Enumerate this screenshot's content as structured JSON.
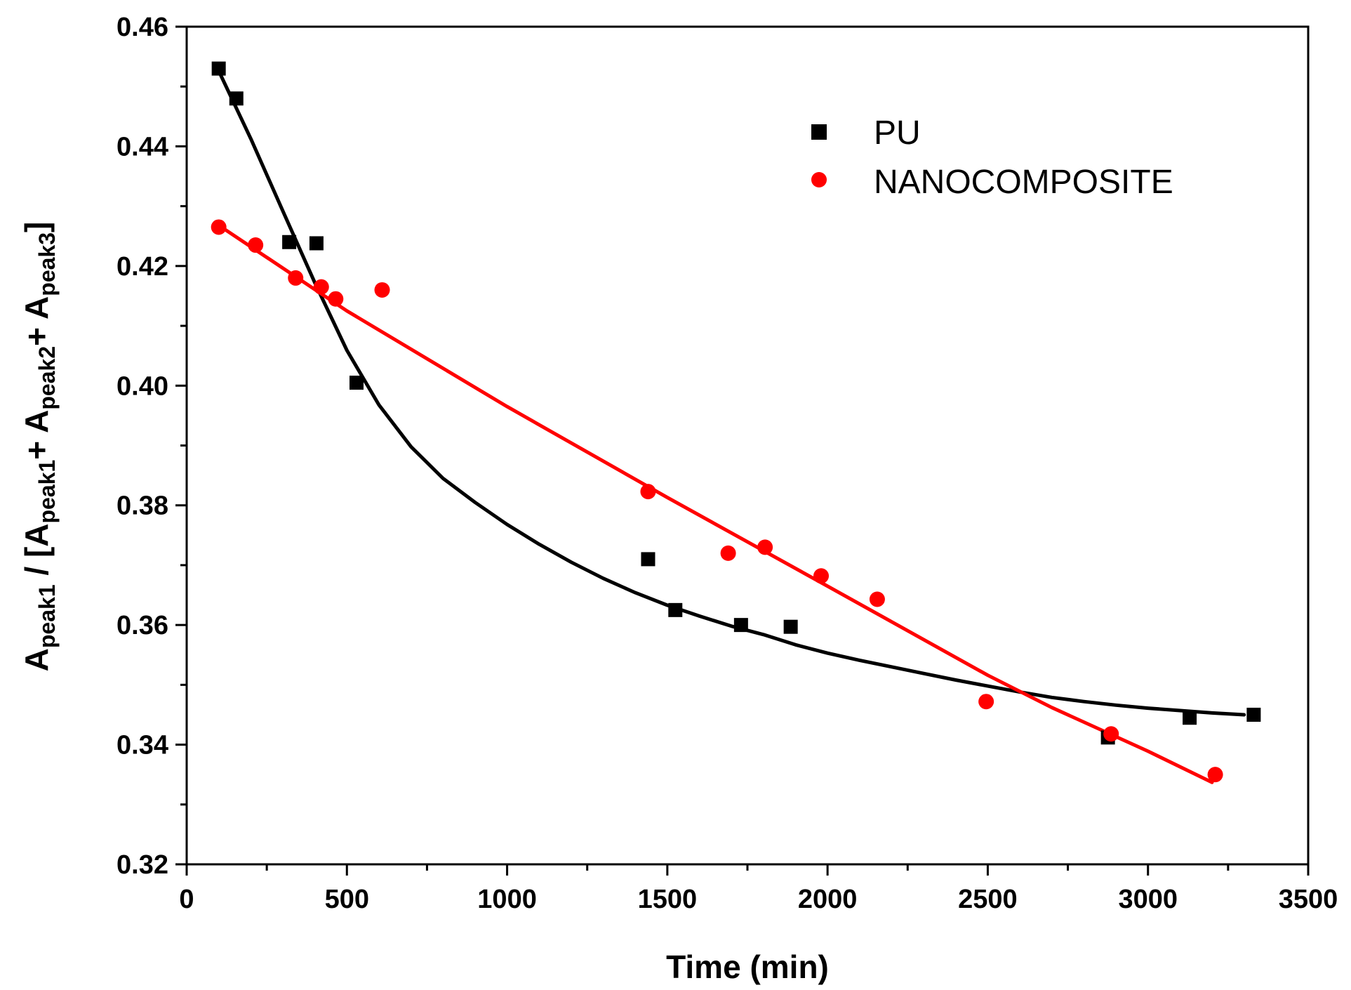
{
  "chart_data": {
    "type": "scatter",
    "title": "",
    "xlabel": "Time (min)",
    "ylabel_parts": [
      "A",
      "peak1",
      " / [A",
      "peak1",
      "+ A",
      "peak2",
      "+ A",
      "peak3",
      "]"
    ],
    "xlim": [
      0,
      3500
    ],
    "ylim": [
      0.32,
      0.46
    ],
    "xticks": [
      0,
      500,
      1000,
      1500,
      2000,
      2500,
      3000,
      3500
    ],
    "xtick_labels": [
      "0",
      "500",
      "1000",
      "1500",
      "2000",
      "2500",
      "3000",
      "3500"
    ],
    "yticks": [
      0.32,
      0.34,
      0.36,
      0.38,
      0.4,
      0.42,
      0.44,
      0.46
    ],
    "ytick_labels": [
      "0.32",
      "0.34",
      "0.36",
      "0.38",
      "0.40",
      "0.42",
      "0.44",
      "0.46"
    ],
    "grid": false,
    "legend_position": "top-right",
    "series": [
      {
        "name": "PU",
        "marker": "square",
        "color": "#000000",
        "x": [
          100,
          155,
          320,
          405,
          530,
          1440,
          1525,
          1730,
          1885,
          2875,
          3130,
          3330
        ],
        "y": [
          0.453,
          0.448,
          0.424,
          0.4238,
          0.4005,
          0.371,
          0.3625,
          0.36,
          0.3597,
          0.3412,
          0.3445,
          0.345
        ],
        "fit": {
          "type": "exponential decay",
          "x": [
            100,
            200,
            300,
            400,
            500,
            600,
            700,
            800,
            900,
            1000,
            1100,
            1200,
            1300,
            1400,
            1500,
            1600,
            1700,
            1800,
            1900,
            2000,
            2100,
            2200,
            2300,
            2400,
            2500,
            2600,
            2700,
            2800,
            2900,
            3000,
            3100,
            3200,
            3300
          ],
          "y": [
            0.4526,
            0.4413,
            0.4292,
            0.4172,
            0.4059,
            0.3968,
            0.3898,
            0.3845,
            0.3805,
            0.3768,
            0.3735,
            0.3705,
            0.3678,
            0.3654,
            0.3633,
            0.3615,
            0.3598,
            0.3584,
            0.3567,
            0.3553,
            0.3541,
            0.353,
            0.3519,
            0.3508,
            0.3498,
            0.3488,
            0.3479,
            0.3472,
            0.3466,
            0.3461,
            0.3457,
            0.3453,
            0.345
          ]
        }
      },
      {
        "name": "NANOCOMPOSITE",
        "marker": "circle",
        "color": "#ff0000",
        "x": [
          100,
          215,
          340,
          420,
          465,
          610,
          1440,
          1690,
          1805,
          1980,
          2155,
          2495,
          2885,
          3210
        ],
        "y": [
          0.4265,
          0.4235,
          0.418,
          0.4165,
          0.4145,
          0.416,
          0.3823,
          0.372,
          0.373,
          0.3682,
          0.3643,
          0.3472,
          0.3418,
          0.335
        ],
        "fit": {
          "type": "polynomial",
          "x": [
            100,
            500,
            1000,
            1500,
            2000,
            2500,
            2700,
            3000,
            3200
          ],
          "y": [
            0.4268,
            0.4125,
            0.3965,
            0.3813,
            0.3665,
            0.3516,
            0.3462,
            0.3389,
            0.3337
          ]
        }
      }
    ]
  }
}
